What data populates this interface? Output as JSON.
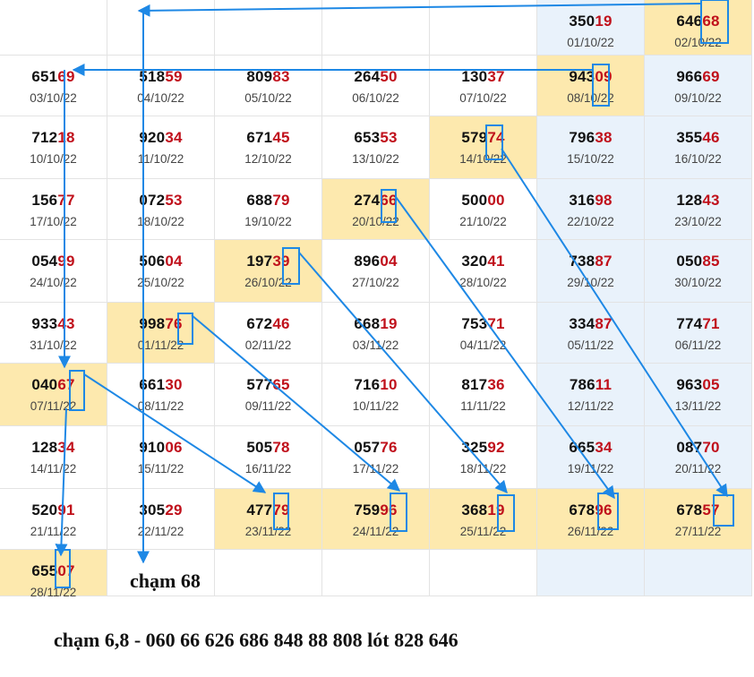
{
  "grid": {
    "rows": [
      [
        null,
        null,
        null,
        null,
        null,
        {
          "prefix": "350",
          "tail": "19",
          "date": "01/10/22"
        },
        {
          "prefix": "646",
          "tail": "68",
          "date": "02/10/22",
          "hl": true
        }
      ],
      [
        {
          "prefix": "651",
          "tail": "69",
          "date": "03/10/22"
        },
        {
          "prefix": "518",
          "tail": "59",
          "date": "04/10/22"
        },
        {
          "prefix": "809",
          "tail": "83",
          "date": "05/10/22"
        },
        {
          "prefix": "264",
          "tail": "50",
          "date": "06/10/22"
        },
        {
          "prefix": "130",
          "tail": "37",
          "date": "07/10/22"
        },
        {
          "prefix": "943",
          "tail": "09",
          "date": "08/10/22",
          "hl": true
        },
        {
          "prefix": "966",
          "tail": "69",
          "date": "09/10/22"
        }
      ],
      [
        {
          "prefix": "712",
          "tail": "18",
          "date": "10/10/22"
        },
        {
          "prefix": "920",
          "tail": "34",
          "date": "11/10/22"
        },
        {
          "prefix": "671",
          "tail": "45",
          "date": "12/10/22"
        },
        {
          "prefix": "653",
          "tail": "53",
          "date": "13/10/22"
        },
        {
          "prefix": "579",
          "tail": "74",
          "date": "14/10/22",
          "hl": true
        },
        {
          "prefix": "796",
          "tail": "38",
          "date": "15/10/22"
        },
        {
          "prefix": "355",
          "tail": "46",
          "date": "16/10/22"
        }
      ],
      [
        {
          "prefix": "156",
          "tail": "77",
          "date": "17/10/22"
        },
        {
          "prefix": "072",
          "tail": "53",
          "date": "18/10/22"
        },
        {
          "prefix": "688",
          "tail": "79",
          "date": "19/10/22"
        },
        {
          "prefix": "274",
          "tail": "66",
          "date": "20/10/22",
          "hl": true
        },
        {
          "prefix": "500",
          "tail": "00",
          "date": "21/10/22"
        },
        {
          "prefix": "316",
          "tail": "98",
          "date": "22/10/22"
        },
        {
          "prefix": "128",
          "tail": "43",
          "date": "23/10/22"
        }
      ],
      [
        {
          "prefix": "054",
          "tail": "99",
          "date": "24/10/22"
        },
        {
          "prefix": "506",
          "tail": "04",
          "date": "25/10/22"
        },
        {
          "prefix": "197",
          "tail": "39",
          "date": "26/10/22",
          "hl": true
        },
        {
          "prefix": "896",
          "tail": "04",
          "date": "27/10/22"
        },
        {
          "prefix": "320",
          "tail": "41",
          "date": "28/10/22"
        },
        {
          "prefix": "738",
          "tail": "87",
          "date": "29/10/22"
        },
        {
          "prefix": "050",
          "tail": "85",
          "date": "30/10/22"
        }
      ],
      [
        {
          "prefix": "933",
          "tail": "43",
          "date": "31/10/22"
        },
        {
          "prefix": "998",
          "tail": "76",
          "date": "01/11/22",
          "hl": true
        },
        {
          "prefix": "672",
          "tail": "46",
          "date": "02/11/22"
        },
        {
          "prefix": "668",
          "tail": "19",
          "date": "03/11/22"
        },
        {
          "prefix": "753",
          "tail": "71",
          "date": "04/11/22"
        },
        {
          "prefix": "334",
          "tail": "87",
          "date": "05/11/22"
        },
        {
          "prefix": "774",
          "tail": "71",
          "date": "06/11/22"
        }
      ],
      [
        {
          "prefix": "040",
          "tail": "67",
          "date": "07/11/22",
          "hl": true
        },
        {
          "prefix": "661",
          "tail": "30",
          "date": "08/11/22"
        },
        {
          "prefix": "577",
          "tail": "65",
          "date": "09/11/22"
        },
        {
          "prefix": "716",
          "tail": "10",
          "date": "10/11/22"
        },
        {
          "prefix": "817",
          "tail": "36",
          "date": "11/11/22"
        },
        {
          "prefix": "786",
          "tail": "11",
          "date": "12/11/22"
        },
        {
          "prefix": "963",
          "tail": "05",
          "date": "13/11/22"
        }
      ],
      [
        {
          "prefix": "128",
          "tail": "34",
          "date": "14/11/22"
        },
        {
          "prefix": "910",
          "tail": "06",
          "date": "15/11/22"
        },
        {
          "prefix": "505",
          "tail": "78",
          "date": "16/11/22"
        },
        {
          "prefix": "057",
          "tail": "76",
          "date": "17/11/22"
        },
        {
          "prefix": "325",
          "tail": "92",
          "date": "18/11/22"
        },
        {
          "prefix": "665",
          "tail": "34",
          "date": "19/11/22"
        },
        {
          "prefix": "087",
          "tail": "70",
          "date": "20/11/22"
        }
      ],
      [
        {
          "prefix": "520",
          "tail": "91",
          "date": "21/11/22"
        },
        {
          "prefix": "305",
          "tail": "29",
          "date": "22/11/22"
        },
        {
          "prefix": "477",
          "tail": "79",
          "date": "23/11/22",
          "hl": true
        },
        {
          "prefix": "759",
          "tail": "96",
          "date": "24/11/22",
          "hl": true
        },
        {
          "prefix": "368",
          "tail": "19",
          "date": "25/11/22",
          "hl": true
        },
        {
          "prefix": "678",
          "tail": "96",
          "date": "26/11/22",
          "hl": true
        },
        {
          "prefix": "678",
          "tail": "57",
          "date": "27/11/22",
          "hl": true
        }
      ],
      [
        {
          "prefix": "655",
          "tail": "07",
          "date": "28/11/22",
          "hl": true
        },
        null,
        null,
        null,
        null,
        null,
        null
      ]
    ]
  },
  "notes": {
    "cham": "chạm 68",
    "summary": "chạm 6,8 - 060 66 626 686 848 88 808 lót 828 646"
  },
  "colors": {
    "arrow": "#1e88e5",
    "highlight": "#fde9ae",
    "weekend_column": "#e9f2fb",
    "tail_digits": "#c0101b"
  }
}
